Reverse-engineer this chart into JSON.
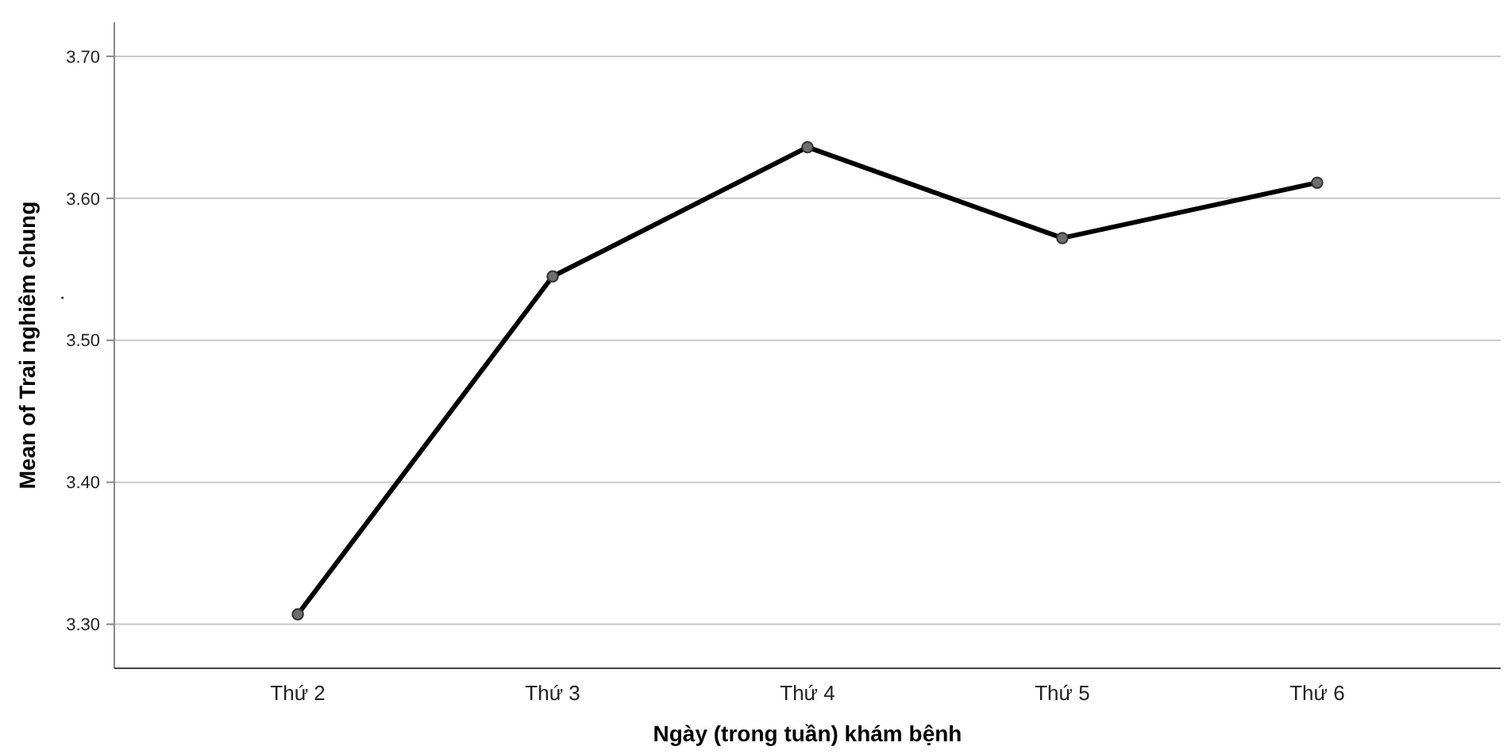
{
  "chart_data": {
    "type": "line",
    "xlabel": "Ngày (trong tuần) khám bệnh",
    "ylabel": "Mean of Trai nghiêm chung",
    "annotations": [
      "."
    ],
    "categories": [
      "Thứ 2",
      "Thứ 3",
      "Thứ 4",
      "Thứ 5",
      "Thứ 6"
    ],
    "series": [
      {
        "color": "#000000",
        "values": [
          3.307,
          3.545,
          3.636,
          3.572,
          3.611
        ]
      }
    ],
    "ylim": [
      3.269,
      3.724
    ],
    "yticks": [
      {
        "value": 3.3,
        "label": "3.30"
      },
      {
        "value": 3.4,
        "label": "3.40"
      },
      {
        "value": 3.5,
        "label": "3.50"
      },
      {
        "value": 3.6,
        "label": "3.60"
      },
      {
        "value": 3.7,
        "label": "3.70"
      }
    ],
    "grid": "y",
    "marker": "circle",
    "line_style": "solid"
  }
}
